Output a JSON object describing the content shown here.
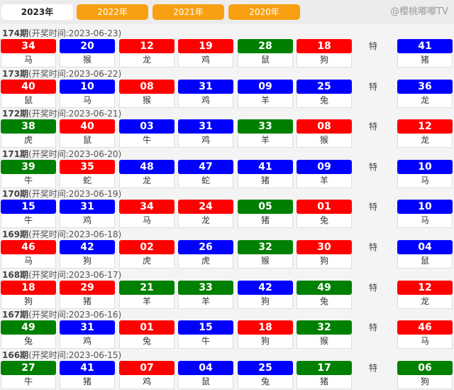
{
  "tabs": [
    {
      "label": "2023年",
      "active": true
    },
    {
      "label": "2022年"
    },
    {
      "label": "2021年"
    },
    {
      "label": "2020年"
    }
  ],
  "special_label": "特",
  "colors": {
    "red": "#ff0000",
    "blue": "#0000ff",
    "green": "#008000"
  },
  "draws": [
    {
      "issue": "174期",
      "time": "(开奖时间:2023-06-23)",
      "balls": [
        [
          "34",
          "马",
          "red"
        ],
        [
          "20",
          "猴",
          "blue"
        ],
        [
          "12",
          "龙",
          "red"
        ],
        [
          "19",
          "鸡",
          "red"
        ],
        [
          "28",
          "鼠",
          "green"
        ],
        [
          "18",
          "狗",
          "red"
        ]
      ],
      "special": [
        "41",
        "猪",
        "blue"
      ]
    },
    {
      "issue": "173期",
      "time": "(开奖时间:2023-06-22)",
      "balls": [
        [
          "40",
          "鼠",
          "red"
        ],
        [
          "10",
          "马",
          "blue"
        ],
        [
          "08",
          "猴",
          "red"
        ],
        [
          "31",
          "鸡",
          "blue"
        ],
        [
          "09",
          "羊",
          "blue"
        ],
        [
          "25",
          "兔",
          "blue"
        ]
      ],
      "special": [
        "36",
        "龙",
        "blue"
      ]
    },
    {
      "issue": "172期",
      "time": "(开奖时间:2023-06-21)",
      "balls": [
        [
          "38",
          "虎",
          "green"
        ],
        [
          "40",
          "鼠",
          "red"
        ],
        [
          "03",
          "牛",
          "blue"
        ],
        [
          "31",
          "鸡",
          "blue"
        ],
        [
          "33",
          "羊",
          "green"
        ],
        [
          "08",
          "猴",
          "red"
        ]
      ],
      "special": [
        "12",
        "龙",
        "red"
      ]
    },
    {
      "issue": "171期",
      "time": "(开奖时间:2023-06-20)",
      "balls": [
        [
          "39",
          "牛",
          "green"
        ],
        [
          "35",
          "蛇",
          "red"
        ],
        [
          "48",
          "龙",
          "blue"
        ],
        [
          "47",
          "蛇",
          "blue"
        ],
        [
          "41",
          "猪",
          "blue"
        ],
        [
          "09",
          "羊",
          "blue"
        ]
      ],
      "special": [
        "10",
        "马",
        "blue"
      ]
    },
    {
      "issue": "170期",
      "time": "(开奖时间:2023-06-19)",
      "balls": [
        [
          "15",
          "牛",
          "blue"
        ],
        [
          "31",
          "鸡",
          "blue"
        ],
        [
          "34",
          "马",
          "red"
        ],
        [
          "24",
          "龙",
          "red"
        ],
        [
          "05",
          "猪",
          "green"
        ],
        [
          "01",
          "兔",
          "red"
        ]
      ],
      "special": [
        "10",
        "马",
        "blue"
      ]
    },
    {
      "issue": "169期",
      "time": "(开奖时间:2023-06-18)",
      "balls": [
        [
          "46",
          "马",
          "red"
        ],
        [
          "42",
          "狗",
          "blue"
        ],
        [
          "02",
          "虎",
          "red"
        ],
        [
          "26",
          "虎",
          "blue"
        ],
        [
          "32",
          "猴",
          "green"
        ],
        [
          "30",
          "狗",
          "red"
        ]
      ],
      "special": [
        "04",
        "鼠",
        "blue"
      ]
    },
    {
      "issue": "168期",
      "time": "(开奖时间:2023-06-17)",
      "balls": [
        [
          "18",
          "狗",
          "red"
        ],
        [
          "29",
          "猪",
          "red"
        ],
        [
          "21",
          "羊",
          "green"
        ],
        [
          "33",
          "羊",
          "green"
        ],
        [
          "42",
          "狗",
          "blue"
        ],
        [
          "49",
          "兔",
          "green"
        ]
      ],
      "special": [
        "12",
        "龙",
        "red"
      ]
    },
    {
      "issue": "167期",
      "time": "(开奖时间:2023-06-16)",
      "balls": [
        [
          "49",
          "兔",
          "green"
        ],
        [
          "31",
          "鸡",
          "blue"
        ],
        [
          "01",
          "兔",
          "red"
        ],
        [
          "15",
          "牛",
          "blue"
        ],
        [
          "18",
          "狗",
          "red"
        ],
        [
          "32",
          "猴",
          "green"
        ]
      ],
      "special": [
        "46",
        "马",
        "red"
      ]
    },
    {
      "issue": "166期",
      "time": "(开奖时间:2023-06-15)",
      "balls": [
        [
          "27",
          "牛",
          "green"
        ],
        [
          "41",
          "猪",
          "blue"
        ],
        [
          "07",
          "鸡",
          "red"
        ],
        [
          "04",
          "鼠",
          "blue"
        ],
        [
          "25",
          "兔",
          "blue"
        ],
        [
          "17",
          "猪",
          "green"
        ]
      ],
      "special": [
        "06",
        "狗",
        "green"
      ]
    }
  ],
  "watermark": "@樱桃嘟嘟TV"
}
